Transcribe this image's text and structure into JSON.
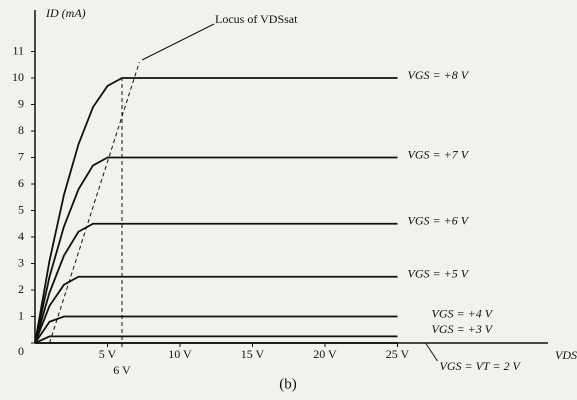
{
  "chart_data": {
    "type": "line",
    "y_label": "ID (mA)",
    "x_label": "VDS",
    "caption": "(b)",
    "x": [
      0,
      1,
      2,
      3,
      4,
      5,
      6,
      8,
      10,
      15,
      20,
      25
    ],
    "series": [
      {
        "name": "VGS = +8 V",
        "color": "#111111",
        "values": [
          0,
          3.1,
          5.6,
          7.5,
          8.9,
          9.7,
          10,
          10,
          10,
          10,
          10,
          10
        ]
      },
      {
        "name": "VGS = +7 V",
        "color": "#111111",
        "values": [
          0,
          2.5,
          4.4,
          5.8,
          6.7,
          7,
          7,
          7,
          7,
          7,
          7,
          7
        ]
      },
      {
        "name": "VGS = +6 V",
        "color": "#111111",
        "values": [
          0,
          1.9,
          3.3,
          4.2,
          4.5,
          4.5,
          4.5,
          4.5,
          4.5,
          4.5,
          4.5,
          4.5
        ]
      },
      {
        "name": "VGS = +5 V",
        "color": "#111111",
        "values": [
          0,
          1.4,
          2.2,
          2.5,
          2.5,
          2.5,
          2.5,
          2.5,
          2.5,
          2.5,
          2.5,
          2.5
        ]
      },
      {
        "name": "VGS = +4 V",
        "color": "#111111",
        "values": [
          0,
          0.8,
          1,
          1,
          1,
          1,
          1,
          1,
          1,
          1,
          1,
          1
        ]
      },
      {
        "name": "VGS = +3 V",
        "color": "#111111",
        "values": [
          0,
          0.25,
          0.25,
          0.25,
          0.25,
          0.25,
          0.25,
          0.25,
          0.25,
          0.25,
          0.25,
          0.25
        ]
      },
      {
        "name": "VGS = VT = 2 V",
        "color": "#111111",
        "values": [
          0,
          0,
          0,
          0,
          0,
          0,
          0,
          0,
          0,
          0,
          0,
          0
        ]
      }
    ],
    "locus": {
      "label": "Locus of VDSsat",
      "x": [
        1,
        7.2
      ],
      "y": [
        0,
        10.6
      ]
    },
    "x_marker": {
      "value": 6,
      "label": "6 V"
    },
    "xlim": [
      0,
      35
    ],
    "ylim": [
      0,
      12
    ],
    "xticks": [
      {
        "value": 5,
        "label": "5 V"
      },
      {
        "value": 10,
        "label": "10 V"
      },
      {
        "value": 15,
        "label": "15 V"
      },
      {
        "value": 20,
        "label": "20 V"
      },
      {
        "value": 25,
        "label": "25 V"
      }
    ],
    "yticks": [
      0,
      1,
      2,
      3,
      4,
      5,
      6,
      7,
      8,
      9,
      10,
      11
    ]
  }
}
